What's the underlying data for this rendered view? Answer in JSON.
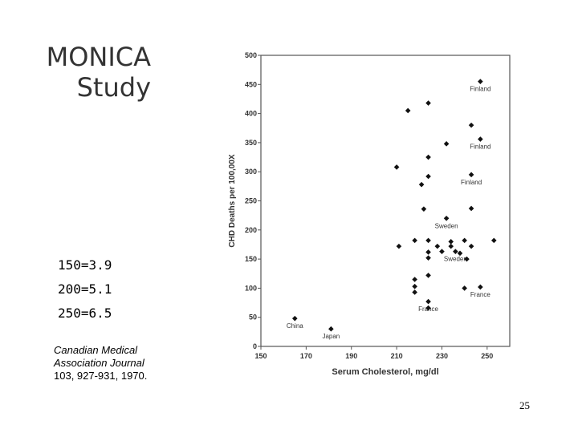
{
  "slide": {
    "title_line1": "MONICA",
    "title_line2": "Study",
    "stats": [
      "150=3.9",
      "200=5.1",
      "250=6.5"
    ],
    "citation": {
      "journal_line1": "Canadian Medical",
      "journal_line2": "Association Journal",
      "reference": "103, 927-931, 1970."
    },
    "page_number": "25"
  },
  "chart_data": {
    "type": "scatter",
    "title": "",
    "xlabel": "Serum Cholesterol, mg/dl",
    "ylabel": "CHD Deaths per 100,00X",
    "xlim": [
      150,
      260
    ],
    "ylim": [
      0,
      500
    ],
    "x_ticks": [
      150,
      170,
      190,
      210,
      230,
      250
    ],
    "y_ticks": [
      0,
      50,
      100,
      150,
      200,
      250,
      300,
      350,
      400,
      450,
      500
    ],
    "grid": false,
    "marker_color": "#111111",
    "points": [
      {
        "x": 165,
        "y": 48,
        "label": "China"
      },
      {
        "x": 181,
        "y": 30,
        "label": "Japan"
      },
      {
        "x": 210,
        "y": 308
      },
      {
        "x": 211,
        "y": 172
      },
      {
        "x": 215,
        "y": 405
      },
      {
        "x": 218,
        "y": 182
      },
      {
        "x": 218,
        "y": 115
      },
      {
        "x": 218,
        "y": 103
      },
      {
        "x": 218,
        "y": 93
      },
      {
        "x": 221,
        "y": 278
      },
      {
        "x": 222,
        "y": 236
      },
      {
        "x": 224,
        "y": 418
      },
      {
        "x": 224,
        "y": 325
      },
      {
        "x": 224,
        "y": 292
      },
      {
        "x": 224,
        "y": 182
      },
      {
        "x": 224,
        "y": 162
      },
      {
        "x": 224,
        "y": 152
      },
      {
        "x": 224,
        "y": 122
      },
      {
        "x": 224,
        "y": 77,
        "label": "France"
      },
      {
        "x": 224,
        "y": 66
      },
      {
        "x": 228,
        "y": 172
      },
      {
        "x": 230,
        "y": 163
      },
      {
        "x": 232,
        "y": 348
      },
      {
        "x": 232,
        "y": 220,
        "label": "Sweden"
      },
      {
        "x": 234,
        "y": 180
      },
      {
        "x": 234,
        "y": 172
      },
      {
        "x": 236,
        "y": 163,
        "label": "Sweden"
      },
      {
        "x": 238,
        "y": 160
      },
      {
        "x": 240,
        "y": 182
      },
      {
        "x": 240,
        "y": 100
      },
      {
        "x": 241,
        "y": 150
      },
      {
        "x": 243,
        "y": 380
      },
      {
        "x": 243,
        "y": 295,
        "label": "Finland"
      },
      {
        "x": 243,
        "y": 237
      },
      {
        "x": 243,
        "y": 172
      },
      {
        "x": 247,
        "y": 455,
        "label": "Finland"
      },
      {
        "x": 247,
        "y": 356,
        "label": "Finland"
      },
      {
        "x": 247,
        "y": 102,
        "label": "France"
      },
      {
        "x": 253,
        "y": 182
      }
    ]
  }
}
